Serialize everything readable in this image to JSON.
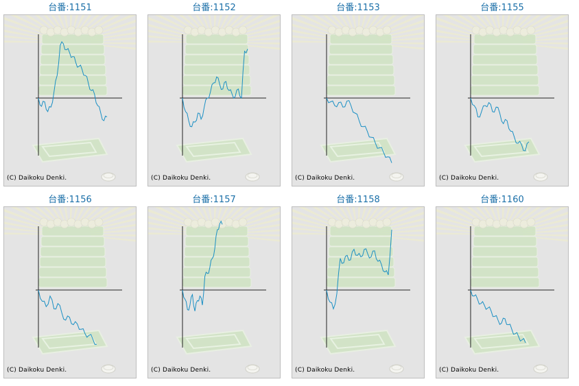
{
  "colors": {
    "line": "#1a8fc4",
    "title": "#1a6fa8",
    "panel_bg": "#e4e4e4",
    "axis": "#222222"
  },
  "chart_data": [
    {
      "type": "line",
      "title": "台番:1151",
      "copyright": "(C) Daikoku Denki.",
      "grid": false,
      "ylim": [
        -100,
        100
      ],
      "series": [
        {
          "values": [
            0,
            -11,
            -5,
            -18,
            -12,
            8,
            30,
            70,
            72,
            64,
            60,
            55,
            47,
            42,
            38,
            30,
            20,
            10,
            5,
            -10,
            -20,
            -30,
            -25
          ]
        }
      ]
    },
    {
      "type": "line",
      "title": "台番:1152",
      "copyright": "(C) Daikoku Denki.",
      "grid": false,
      "ylim": [
        -100,
        100
      ],
      "series": [
        {
          "values": [
            0,
            -18,
            -30,
            -38,
            -32,
            -20,
            -28,
            -12,
            0,
            8,
            20,
            28,
            18,
            12,
            22,
            10,
            5,
            2,
            12,
            0,
            62,
            65
          ]
        }
      ]
    },
    {
      "type": "line",
      "title": "台番:1153",
      "copyright": "(C) Daikoku Denki.",
      "grid": false,
      "ylim": [
        -100,
        100
      ],
      "series": [
        {
          "values": [
            0,
            -5,
            -10,
            -6,
            -12,
            -4,
            -10,
            -20,
            -30,
            -38,
            -44,
            -52,
            -60,
            -66,
            -72,
            -78,
            -86
          ]
        }
      ]
    },
    {
      "type": "line",
      "title": "台番:1155",
      "copyright": "(C) Daikoku Denki.",
      "grid": false,
      "ylim": [
        -100,
        100
      ],
      "series": [
        {
          "values": [
            0,
            -10,
            -25,
            -18,
            -10,
            -6,
            -18,
            -12,
            -20,
            -34,
            -30,
            -44,
            -52,
            -60,
            -62,
            -70,
            -58
          ]
        }
      ]
    },
    {
      "type": "line",
      "title": "台番:1156",
      "copyright": "(C) Daikoku Denki.",
      "grid": false,
      "ylim": [
        -100,
        100
      ],
      "series": [
        {
          "values": [
            0,
            -15,
            -22,
            -8,
            -25,
            -18,
            -30,
            -40,
            -36,
            -46,
            -45,
            -52,
            -58,
            -60,
            -65,
            -72
          ]
        }
      ]
    },
    {
      "type": "line",
      "title": "台番:1157",
      "copyright": "(C) Daikoku Denki.",
      "grid": false,
      "ylim": [
        -100,
        100
      ],
      "series": [
        {
          "values": [
            0,
            -12,
            -26,
            -20,
            -6,
            -28,
            -14,
            -8,
            -20,
            18,
            22,
            30,
            42,
            55,
            80,
            88,
            87
          ]
        }
      ]
    },
    {
      "type": "line",
      "title": "台番:1158",
      "copyright": "(C) Daikoku Denki.",
      "grid": false,
      "ylim": [
        -100,
        100
      ],
      "series": [
        {
          "values": [
            0,
            -16,
            -25,
            -5,
            42,
            36,
            46,
            40,
            54,
            46,
            44,
            54,
            48,
            44,
            52,
            38,
            34,
            24,
            20,
            80
          ]
        }
      ]
    },
    {
      "type": "line",
      "title": "台番:1160",
      "copyright": "(C) Daikoku Denki.",
      "grid": false,
      "ylim": [
        -100,
        100
      ],
      "series": [
        {
          "values": [
            0,
            -8,
            -12,
            -18,
            -20,
            -24,
            -28,
            -35,
            -40,
            -44,
            -38,
            -46,
            -52,
            -58,
            -62,
            -66,
            -70
          ]
        }
      ]
    }
  ]
}
